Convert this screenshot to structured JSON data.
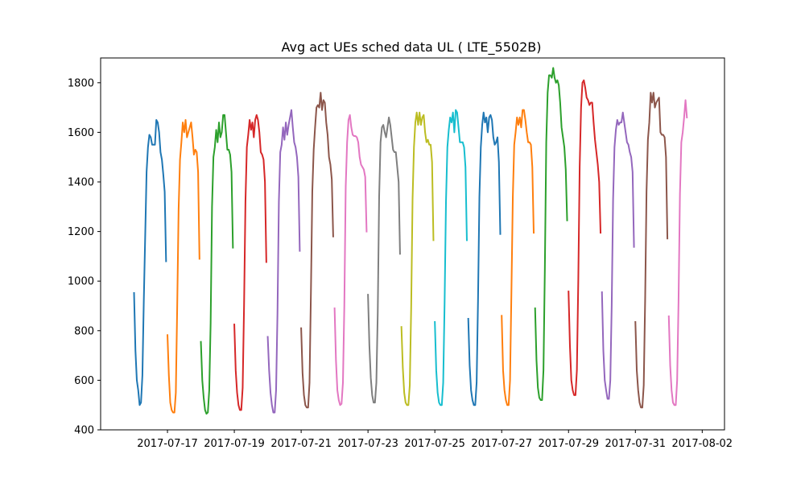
{
  "chart_data": {
    "type": "line",
    "title": "Avg act UEs sched data UL ( LTE_5502B)",
    "xlabel": "",
    "ylabel": "",
    "x_is_date": true,
    "xlim": [
      "2017-07-15T00:00",
      "2017-08-02T16:00"
    ],
    "ylim": [
      400,
      1900
    ],
    "grid": false,
    "legend": "none",
    "x_ticks": [
      "2017-07-17",
      "2017-07-19",
      "2017-07-21",
      "2017-07-23",
      "2017-07-25",
      "2017-07-27",
      "2017-07-29",
      "2017-07-31",
      "2017-08-02"
    ],
    "y_ticks": [
      400,
      600,
      800,
      1000,
      1200,
      1400,
      1600,
      1800
    ],
    "palette": [
      "#1f77b4",
      "#ff7f0e",
      "#2ca02c",
      "#d62728",
      "#9467bd",
      "#8c564b",
      "#e377c2",
      "#7f7f7f",
      "#bcbd22",
      "#17becf"
    ],
    "series": [
      {
        "start": "2017-07-16T00:00",
        "values": [
          952,
          720,
          600,
          560,
          500,
          510,
          620,
          920,
          1180,
          1440,
          1540,
          1590,
          1580,
          1550,
          1550,
          1550,
          1650,
          1640,
          1600,
          1520,
          1490,
          1430,
          1360,
          1080
        ]
      },
      {
        "start": "2017-07-17T00:00",
        "values": [
          782,
          620,
          510,
          480,
          470,
          470,
          550,
          900,
          1290,
          1490,
          1560,
          1640,
          1600,
          1650,
          1580,
          1600,
          1620,
          1640,
          1580,
          1510,
          1530,
          1520,
          1440,
          1090
        ]
      },
      {
        "start": "2017-07-18T00:00",
        "values": [
          755,
          600,
          530,
          480,
          465,
          470,
          560,
          830,
          1300,
          1500,
          1540,
          1610,
          1560,
          1640,
          1580,
          1600,
          1670,
          1670,
          1600,
          1530,
          1530,
          1510,
          1440,
          1135
        ]
      },
      {
        "start": "2017-07-19T00:00",
        "values": [
          825,
          640,
          550,
          500,
          480,
          480,
          570,
          900,
          1320,
          1540,
          1590,
          1650,
          1610,
          1640,
          1580,
          1650,
          1670,
          1650,
          1600,
          1520,
          1510,
          1490,
          1400,
          1077
        ]
      },
      {
        "start": "2017-07-20T00:00",
        "values": [
          775,
          640,
          550,
          500,
          470,
          470,
          560,
          870,
          1320,
          1520,
          1550,
          1620,
          1570,
          1640,
          1590,
          1630,
          1660,
          1690,
          1620,
          1560,
          1540,
          1500,
          1420,
          1122
        ]
      },
      {
        "start": "2017-07-21T00:00",
        "values": [
          810,
          630,
          540,
          500,
          490,
          490,
          590,
          950,
          1360,
          1530,
          1620,
          1700,
          1710,
          1700,
          1760,
          1690,
          1730,
          1720,
          1640,
          1590,
          1500,
          1470,
          1410,
          1180
        ]
      },
      {
        "start": "2017-07-22T00:00",
        "values": [
          890,
          680,
          560,
          520,
          500,
          505,
          590,
          900,
          1380,
          1560,
          1650,
          1670,
          1620,
          1590,
          1585,
          1585,
          1580,
          1560,
          1500,
          1470,
          1460,
          1450,
          1420,
          1200
        ]
      },
      {
        "start": "2017-07-23T00:00",
        "values": [
          945,
          740,
          610,
          540,
          510,
          510,
          590,
          870,
          1340,
          1560,
          1620,
          1630,
          1600,
          1580,
          1620,
          1660,
          1630,
          1580,
          1530,
          1520,
          1520,
          1460,
          1400,
          1110
        ]
      },
      {
        "start": "2017-07-24T00:00",
        "values": [
          815,
          650,
          550,
          510,
          500,
          500,
          580,
          890,
          1330,
          1540,
          1640,
          1680,
          1630,
          1680,
          1630,
          1660,
          1670,
          1600,
          1560,
          1570,
          1550,
          1550,
          1480,
          1165
        ]
      },
      {
        "start": "2017-07-25T00:00",
        "values": [
          835,
          640,
          550,
          510,
          500,
          500,
          590,
          910,
          1320,
          1540,
          1610,
          1660,
          1640,
          1680,
          1600,
          1690,
          1680,
          1620,
          1560,
          1560,
          1560,
          1540,
          1460,
          1165
        ]
      },
      {
        "start": "2017-07-26T00:00",
        "values": [
          848,
          660,
          560,
          520,
          500,
          500,
          590,
          920,
          1340,
          1540,
          1630,
          1680,
          1640,
          1660,
          1600,
          1660,
          1670,
          1650,
          1580,
          1550,
          1560,
          1580,
          1480,
          1190
        ]
      },
      {
        "start": "2017-07-27T00:00",
        "values": [
          860,
          640,
          560,
          520,
          500,
          500,
          600,
          960,
          1340,
          1550,
          1600,
          1660,
          1630,
          1660,
          1620,
          1690,
          1690,
          1650,
          1600,
          1560,
          1560,
          1550,
          1460,
          1195
        ]
      },
      {
        "start": "2017-07-28T00:00",
        "values": [
          890,
          680,
          570,
          530,
          520,
          520,
          640,
          1050,
          1560,
          1760,
          1830,
          1830,
          1820,
          1860,
          1820,
          1800,
          1810,
          1790,
          1720,
          1620,
          1580,
          1540,
          1450,
          1245
        ]
      },
      {
        "start": "2017-07-29T00:00",
        "values": [
          958,
          740,
          600,
          560,
          540,
          540,
          640,
          1000,
          1460,
          1700,
          1800,
          1810,
          1780,
          1740,
          1730,
          1710,
          1720,
          1720,
          1640,
          1570,
          1520,
          1470,
          1400,
          1195
        ]
      },
      {
        "start": "2017-07-30T00:00",
        "values": [
          955,
          720,
          600,
          560,
          525,
          525,
          600,
          900,
          1330,
          1540,
          1610,
          1650,
          1630,
          1640,
          1640,
          1680,
          1640,
          1600,
          1560,
          1550,
          1520,
          1500,
          1440,
          1138
        ]
      },
      {
        "start": "2017-07-31T00:00",
        "values": [
          835,
          640,
          560,
          510,
          490,
          490,
          580,
          920,
          1360,
          1570,
          1640,
          1760,
          1720,
          1760,
          1700,
          1720,
          1730,
          1740,
          1600,
          1590,
          1590,
          1580,
          1500,
          1172
        ]
      },
      {
        "start": "2017-08-01T00:00",
        "values": [
          858,
          660,
          560,
          510,
          500,
          500,
          600,
          920,
          1350,
          1560,
          1600,
          1660,
          1730,
          1660
        ]
      }
    ]
  }
}
